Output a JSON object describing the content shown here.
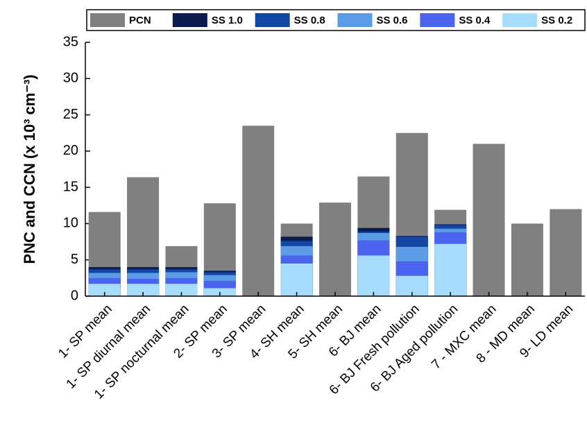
{
  "chart_data": {
    "type": "overlaid_bar",
    "y_label": "PNC and CCN  (x 10³ cm⁻³)",
    "categories": [
      "1- SP mean",
      "1- SP diurnal mean",
      "1- SP nocturnal mean",
      "2- SP mean",
      "3- SP mean",
      "4- SH mean",
      "5- SH mean",
      "6- BJ mean",
      "6- BJ Fresh pollution",
      "6- BJ Aged pollution",
      "7 - MXC mean",
      "8 - MD mean",
      "9- LD mean"
    ],
    "series": [
      {
        "name": "PCN",
        "color": "#808080",
        "values": [
          11.6,
          16.4,
          6.9,
          12.8,
          23.5,
          10.0,
          12.9,
          16.5,
          22.5,
          11.9,
          21.0,
          10.0,
          12.0
        ]
      },
      {
        "name": "SS 1.0",
        "color": "#0b1b4d",
        "values": [
          4.0,
          4.0,
          4.0,
          3.5,
          null,
          8.2,
          null,
          9.4,
          8.3,
          9.9,
          null,
          null,
          null
        ]
      },
      {
        "name": "SS 0.8",
        "color": "#1446a6",
        "values": [
          3.7,
          3.7,
          3.7,
          3.3,
          null,
          7.6,
          null,
          8.9,
          8.2,
          9.8,
          null,
          null,
          null
        ]
      },
      {
        "name": "SS 0.6",
        "color": "#5c9be6",
        "values": [
          3.2,
          3.2,
          3.3,
          2.9,
          null,
          6.9,
          null,
          8.7,
          6.8,
          9.3,
          null,
          null,
          null
        ]
      },
      {
        "name": "SS 0.4",
        "color": "#4a64f0",
        "values": [
          2.5,
          2.4,
          2.5,
          2.1,
          null,
          5.6,
          null,
          7.7,
          4.8,
          8.8,
          null,
          null,
          null
        ]
      },
      {
        "name": "SS 0.2",
        "color": "#a6dcfb",
        "values": [
          1.7,
          1.7,
          1.7,
          1.1,
          null,
          4.5,
          null,
          5.6,
          2.8,
          7.2,
          null,
          null,
          null
        ]
      }
    ],
    "ylim": [
      0,
      35
    ],
    "yticks": [
      0,
      5,
      10,
      15,
      20,
      25,
      30,
      35
    ]
  }
}
